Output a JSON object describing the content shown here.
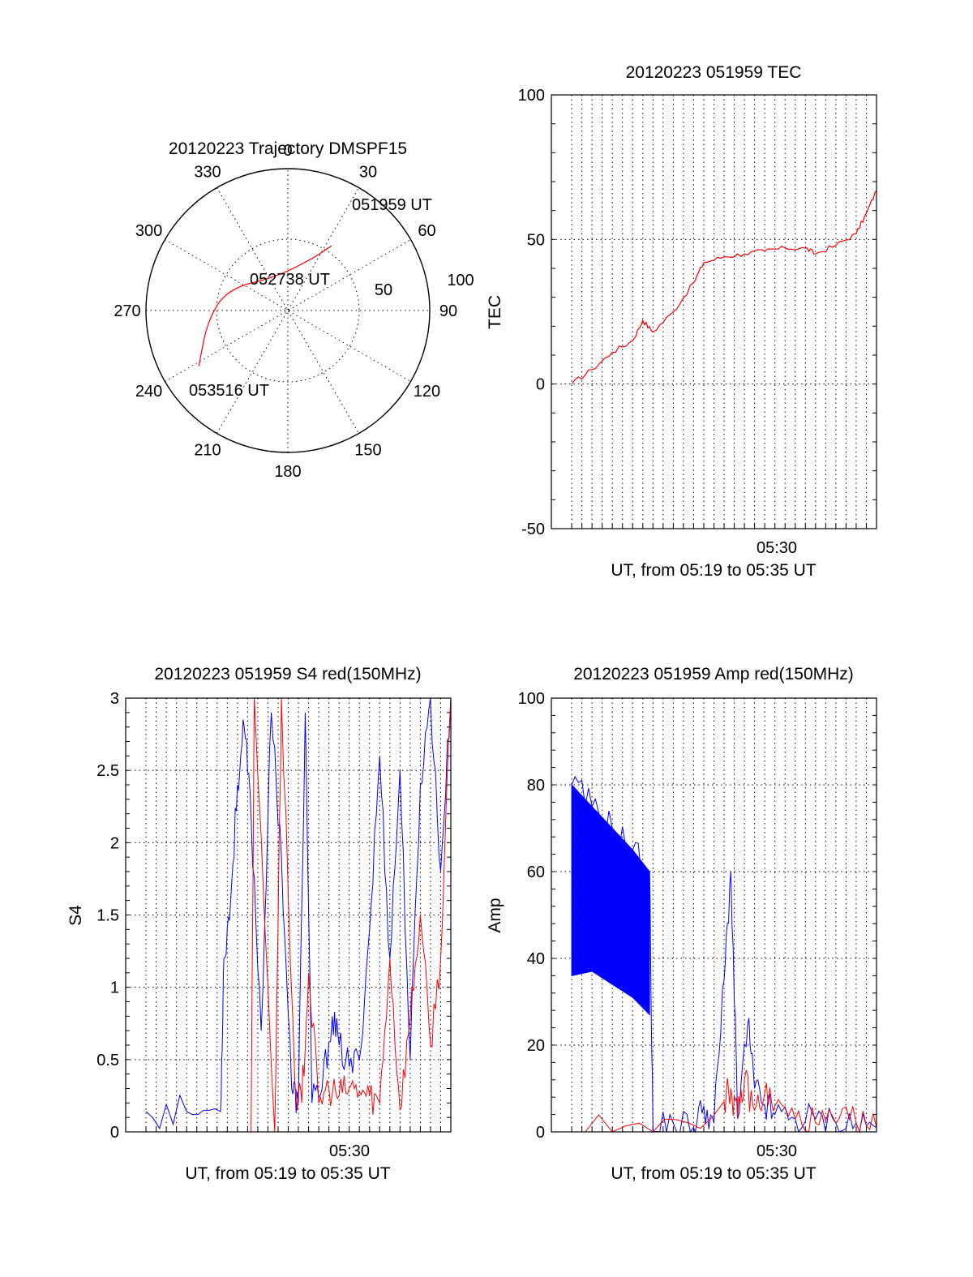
{
  "colors": {
    "red": "#ff0000",
    "blue": "#0000ff",
    "axis": "#000000",
    "background": "#ffffff"
  },
  "chart_data": [
    {
      "type": "polar",
      "title": "20120223 Trajectory DMSPF15",
      "azimuth_labels": [
        "0",
        "30",
        "60",
        "90",
        "120",
        "150",
        "180",
        "210",
        "240",
        "270",
        "300",
        "330"
      ],
      "radial_labels": [
        "50",
        "100"
      ],
      "radial_range": [
        0,
        100
      ],
      "grid": true,
      "series": [
        {
          "color": "red",
          "points": [
            {
              "az": 34,
              "r": 55
            },
            {
              "az": 25,
              "r": 40
            },
            {
              "az": 340,
              "r": 25
            },
            {
              "az": 290,
              "r": 45
            },
            {
              "az": 263,
              "r": 57
            },
            {
              "az": 238,
              "r": 74
            }
          ]
        }
      ],
      "annotations": [
        "051959 UT",
        "052738 UT",
        "053516 UT"
      ]
    },
    {
      "type": "line",
      "title": "20120223 051959 TEC",
      "xlabel": "UT, from 05:19 to 05:35 UT",
      "ylabel": "TEC",
      "x_tick_labels": [
        "05:30"
      ],
      "xlim": [
        "05:19",
        "05:35"
      ],
      "ylim": [
        -50,
        100
      ],
      "y_ticks": [
        "-50",
        "0",
        "50",
        "100"
      ],
      "grid": true,
      "series": [
        {
          "color": "red",
          "x": [
            "05:20:00",
            "05:21:00",
            "05:22:00",
            "05:23:00",
            "05:23:30",
            "05:24:00",
            "05:25:00",
            "05:26:00",
            "05:26:30",
            "05:27:30",
            "05:28:30",
            "05:29:30",
            "05:30:30",
            "05:31:30",
            "05:32:00",
            "05:33:00",
            "05:34:00",
            "05:34:30",
            "05:35:00"
          ],
          "y": [
            0,
            5,
            11,
            15,
            22,
            18,
            25,
            35,
            42,
            44,
            45,
            46,
            47,
            47,
            45,
            48,
            52,
            59,
            67
          ]
        }
      ]
    },
    {
      "type": "line",
      "title": "20120223 051959 S4 red(150MHz)",
      "xlabel": "UT, from 05:19 to 05:35 UT",
      "ylabel": "S4",
      "x_tick_labels": [
        "05:30"
      ],
      "xlim": [
        "05:19",
        "05:35"
      ],
      "ylim": [
        0,
        3
      ],
      "y_ticks": [
        "0",
        "0.5",
        "1",
        "1.5",
        "2",
        "2.5",
        "3"
      ],
      "grid": true,
      "series": [
        {
          "color": "blue",
          "x": [
            "05:20:00",
            "05:22:00",
            "05:23:40",
            "05:23:50",
            "05:24:10",
            "05:24:30",
            "05:24:50",
            "05:25:10",
            "05:25:40",
            "05:26:10",
            "05:26:40",
            "05:27:10",
            "05:27:30",
            "05:27:50",
            "05:28:10",
            "05:28:40",
            "05:29:10",
            "05:29:30",
            "05:30:00",
            "05:30:30",
            "05:31:00",
            "05:31:30",
            "05:32:00",
            "05:32:30",
            "05:33:00",
            "05:33:30",
            "05:34:00",
            "05:34:30",
            "05:35:00"
          ],
          "y": [
            0.14,
            0.14,
            0.14,
            1.2,
            1.6,
            2.4,
            2.8,
            2.2,
            0.7,
            2.9,
            1.9,
            0.3,
            0.2,
            2.9,
            0.2,
            0.3,
            0.8,
            0.6,
            0.45,
            0.5,
            1.4,
            2.6,
            1.2,
            2.5,
            0.5,
            2.4,
            3.0,
            1.8,
            3.0
          ]
        },
        {
          "color": "red",
          "x": [
            "05:25:10",
            "05:25:20",
            "05:26:20",
            "05:26:40",
            "05:27:20",
            "05:27:40",
            "05:28:00",
            "05:28:30",
            "05:29:00",
            "05:29:30",
            "05:30:00",
            "05:30:30",
            "05:31:00",
            "05:31:30",
            "05:32:00",
            "05:32:30",
            "05:33:00",
            "05:33:30",
            "05:34:00",
            "05:34:30",
            "05:35:00"
          ],
          "y": [
            0,
            3.0,
            0,
            3.0,
            0.3,
            0.2,
            1.1,
            0.2,
            0.3,
            0.25,
            0.3,
            0.28,
            0.25,
            0.2,
            1.2,
            0.15,
            0.8,
            1.5,
            0.6,
            1.2,
            3.0
          ]
        }
      ]
    },
    {
      "type": "line",
      "title": "20120223 051959 Amp red(150MHz)",
      "xlabel": "UT, from 05:19 to 05:35 UT",
      "ylabel": "Amp",
      "x_tick_labels": [
        "05:30"
      ],
      "xlim": [
        "05:19",
        "05:35"
      ],
      "ylim": [
        0,
        100
      ],
      "y_ticks": [
        "0",
        "20",
        "40",
        "60",
        "80",
        "100"
      ],
      "grid": true,
      "series": [
        {
          "color": "blue",
          "x": [
            "05:20:00",
            "05:21:00",
            "05:22:00",
            "05:23:00",
            "05:23:50",
            "05:24:00",
            "05:25:00",
            "05:26:00",
            "05:26:30",
            "05:27:00",
            "05:27:30",
            "05:27:50",
            "05:28:10",
            "05:28:40",
            "05:29:00",
            "05:29:30",
            "05:30:00",
            "05:31:00",
            "05:32:00",
            "05:33:00",
            "05:34:00",
            "05:35:00"
          ],
          "y": [
            80,
            75,
            70,
            65,
            60,
            0,
            2,
            1,
            6,
            2,
            35,
            60,
            3,
            25,
            10,
            6,
            4,
            3,
            3,
            2,
            2,
            1
          ],
          "y_min": [
            36,
            37,
            34,
            31,
            27
          ]
        },
        {
          "color": "red",
          "x": [
            "05:20:00",
            "05:24:00",
            "05:27:30",
            "05:27:50",
            "05:28:10",
            "05:28:30",
            "05:29:00",
            "05:29:30",
            "05:30:00",
            "05:31:00",
            "05:32:00",
            "05:33:00",
            "05:34:00",
            "05:35:00"
          ],
          "y": [
            0,
            0,
            7,
            10,
            3,
            12,
            5,
            9,
            6,
            3,
            2,
            2,
            2,
            1
          ]
        }
      ]
    }
  ]
}
